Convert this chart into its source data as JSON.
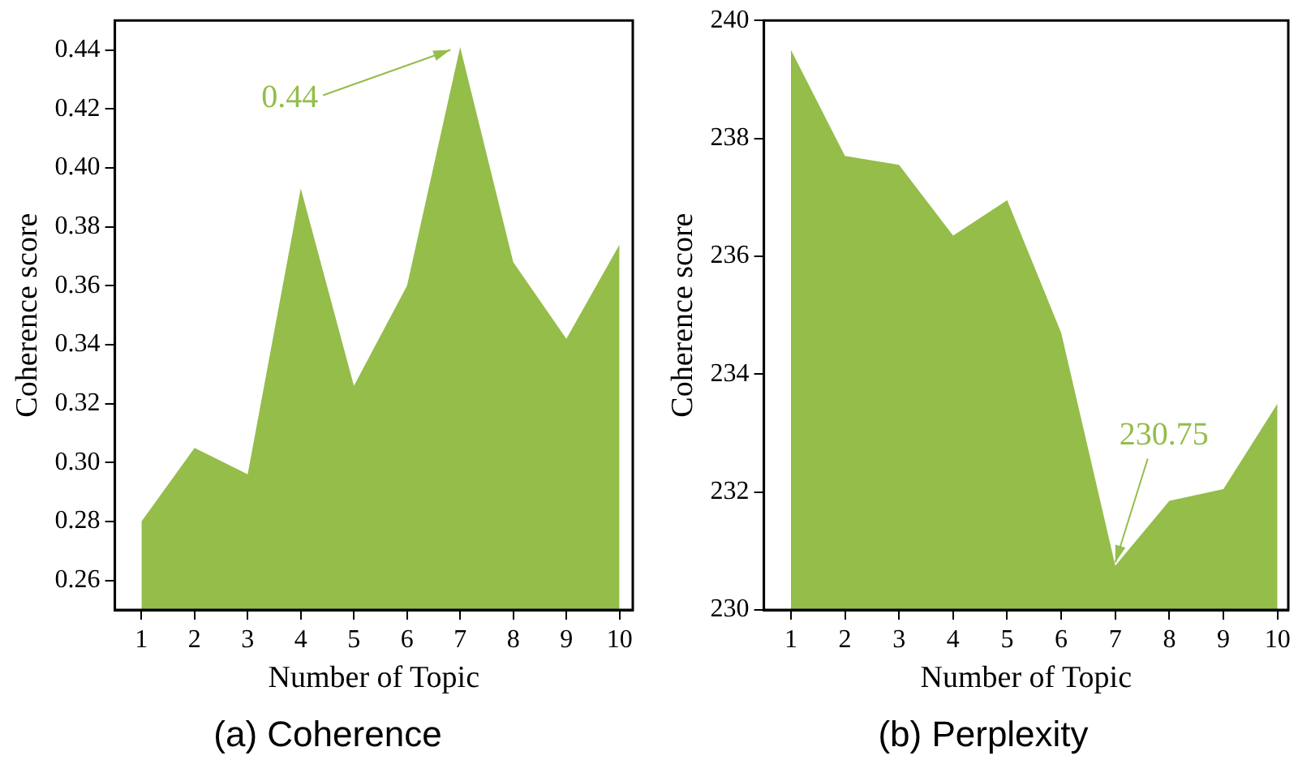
{
  "chart_data": [
    {
      "type": "area",
      "title": "(a) Coherence",
      "xlabel": "Number of Topic",
      "ylabel": "Coherence score",
      "x": [
        1,
        2,
        3,
        4,
        5,
        6,
        7,
        8,
        9,
        10
      ],
      "series": [
        {
          "color": "#94bd4a",
          "values": [
            0.28,
            0.305,
            0.296,
            0.393,
            0.326,
            0.36,
            0.441,
            0.368,
            0.342,
            0.374
          ]
        }
      ],
      "xlim": [
        0.5,
        10.25
      ],
      "xticks": [
        1,
        2,
        3,
        4,
        5,
        6,
        7,
        8,
        9,
        10
      ],
      "ylim": [
        0.25,
        0.45
      ],
      "yticks": [
        {
          "value": 0.26,
          "label": "0.26"
        },
        {
          "value": 0.28,
          "label": "0.28"
        },
        {
          "value": 0.3,
          "label": "0.30"
        },
        {
          "value": 0.32,
          "label": "0.32"
        },
        {
          "value": 0.34,
          "label": "0.34"
        },
        {
          "value": 0.36,
          "label": "0.36"
        },
        {
          "value": 0.38,
          "label": "0.38"
        },
        {
          "value": 0.4,
          "label": "0.40"
        },
        {
          "value": 0.42,
          "label": "0.42"
        },
        {
          "value": 0.44,
          "label": "0.44"
        }
      ],
      "annotations": [
        {
          "text": "0.44",
          "x": 7,
          "y": 0.44
        }
      ],
      "grid": false,
      "legend": false,
      "marker": "none"
    },
    {
      "type": "area",
      "title": "(b) Perplexity",
      "xlabel": "Number of Topic",
      "ylabel": "Coherence score",
      "x": [
        1,
        2,
        3,
        4,
        5,
        6,
        7,
        8,
        9,
        10
      ],
      "series": [
        {
          "color": "#94bd4a",
          "values": [
            239.5,
            237.7,
            237.55,
            236.35,
            236.95,
            234.7,
            230.75,
            231.85,
            232.05,
            233.5
          ]
        }
      ],
      "xlim": [
        0.5,
        10.2
      ],
      "xticks": [
        1,
        2,
        3,
        4,
        5,
        6,
        7,
        8,
        9,
        10
      ],
      "ylim": [
        230,
        240
      ],
      "yticks": [
        230,
        232,
        234,
        236,
        238,
        240
      ],
      "annotations": [
        {
          "text": "230.75",
          "x": 7,
          "y": 230.75
        }
      ],
      "grid": false,
      "legend": false,
      "marker": "none"
    }
  ]
}
